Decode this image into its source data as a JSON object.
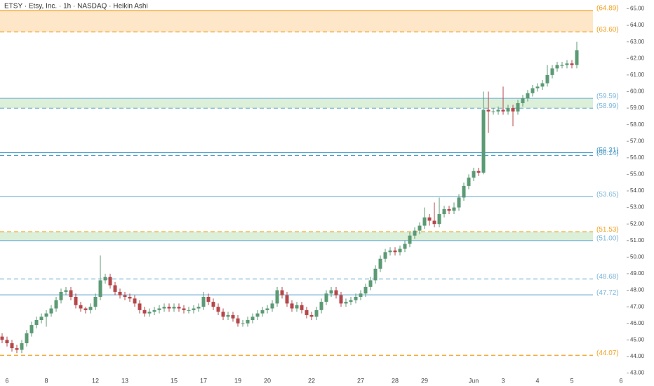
{
  "chart_data": {
    "type": "candlestick",
    "title": "ETSY · Etsy, Inc. · 1h · NASDAQ · Heikin Ashi",
    "categories": [
      null,
      "6",
      null,
      null,
      null,
      null,
      null,
      null,
      null,
      "8",
      null,
      null,
      null,
      null,
      null,
      null,
      null,
      null,
      null,
      "12",
      null,
      null,
      null,
      null,
      null,
      "13",
      null,
      null,
      null,
      null,
      null,
      null,
      null,
      null,
      null,
      "15",
      null,
      null,
      null,
      null,
      null,
      "17",
      null,
      null,
      null,
      null,
      null,
      null,
      "19",
      null,
      null,
      null,
      null,
      null,
      "20",
      null,
      null,
      null,
      null,
      null,
      null,
      null,
      null,
      "22",
      null,
      null,
      null,
      null,
      null,
      null,
      null,
      null,
      null,
      "27",
      null,
      null,
      null,
      null,
      null,
      null,
      "28",
      null,
      null,
      null,
      null,
      null,
      "29",
      null,
      null,
      null,
      null,
      null,
      null,
      null,
      null,
      null,
      "Jun",
      null,
      null,
      null,
      null,
      null,
      "3",
      null,
      null,
      null,
      null,
      null,
      null,
      "4",
      null,
      null,
      null,
      null,
      null,
      null,
      "5",
      null,
      null,
      null,
      null,
      null,
      null,
      null,
      null,
      null,
      "6",
      null
    ],
    "open": [
      45.2,
      45.0,
      44.8,
      44.5,
      44.4,
      44.8,
      45.4,
      45.9,
      46.2,
      46.4,
      46.6,
      46.9,
      47.4,
      47.9,
      48.0,
      47.6,
      47.1,
      46.9,
      46.8,
      47.0,
      47.6,
      48.6,
      48.8,
      48.3,
      47.9,
      47.7,
      47.6,
      47.5,
      47.2,
      46.8,
      46.6,
      46.7,
      46.8,
      46.9,
      47.0,
      46.9,
      47.0,
      46.9,
      46.8,
      46.8,
      46.9,
      47.0,
      47.6,
      47.3,
      47.0,
      46.7,
      46.4,
      46.5,
      46.3,
      46.0,
      46.0,
      46.2,
      46.4,
      46.6,
      46.8,
      46.9,
      47.2,
      48.0,
      47.7,
      47.2,
      46.9,
      47.1,
      46.8,
      46.5,
      46.4,
      46.8,
      47.3,
      47.8,
      48.0,
      47.7,
      47.2,
      47.3,
      47.4,
      47.6,
      47.8,
      48.2,
      48.6,
      49.3,
      49.9,
      50.3,
      50.4,
      50.3,
      50.5,
      50.8,
      51.3,
      51.6,
      51.9,
      52.4,
      52.2,
      52.0,
      52.6,
      52.9,
      52.8,
      53.0,
      53.6,
      54.3,
      54.8,
      55.2,
      55.1,
      58.9,
      58.8,
      58.8,
      58.9,
      58.8,
      59.0,
      58.8,
      59.3,
      59.6,
      59.9,
      60.2,
      60.3,
      60.5,
      61.0,
      61.4,
      61.6,
      61.6,
      61.7,
      61.6,
      null,
      null,
      null,
      null,
      null,
      null,
      null,
      null,
      null,
      null
    ],
    "high": [
      45.4,
      45.2,
      45.0,
      44.7,
      45.0,
      45.6,
      46.1,
      46.4,
      46.6,
      46.8,
      47.1,
      47.6,
      48.1,
      48.2,
      48.2,
      47.8,
      47.3,
      47.0,
      47.2,
      47.8,
      50.1,
      49.0,
      49.0,
      48.5,
      48.1,
      47.9,
      47.8,
      47.7,
      47.4,
      47.0,
      46.9,
      47.0,
      47.1,
      47.2,
      47.2,
      47.2,
      47.2,
      47.1,
      47.0,
      47.1,
      47.2,
      47.9,
      47.8,
      47.5,
      47.2,
      46.9,
      46.7,
      46.7,
      46.5,
      46.2,
      46.4,
      46.6,
      46.8,
      47.0,
      47.1,
      47.4,
      48.2,
      48.2,
      47.9,
      47.4,
      47.3,
      47.3,
      47.0,
      46.7,
      47.0,
      47.5,
      48.0,
      48.2,
      48.2,
      47.9,
      47.5,
      47.6,
      47.8,
      48.0,
      48.4,
      48.8,
      49.5,
      50.1,
      50.5,
      50.6,
      50.6,
      50.7,
      51.0,
      51.5,
      51.8,
      52.1,
      53.0,
      52.6,
      53.3,
      53.6,
      53.1,
      53.1,
      53.3,
      53.8,
      54.5,
      55.0,
      55.4,
      55.4,
      60.0,
      60.0,
      59.0,
      59.1,
      60.3,
      59.2,
      59.2,
      59.5,
      59.8,
      60.1,
      60.4,
      60.5,
      60.7,
      61.6,
      61.6,
      61.8,
      61.8,
      61.9,
      61.9,
      63.0,
      null,
      null,
      null,
      null,
      null,
      null,
      null,
      null,
      null,
      null
    ],
    "low": [
      44.8,
      44.6,
      44.3,
      44.2,
      44.2,
      44.6,
      45.2,
      45.7,
      46.0,
      45.8,
      46.4,
      46.7,
      47.2,
      47.7,
      47.4,
      46.9,
      46.7,
      46.6,
      46.6,
      46.8,
      47.4,
      48.4,
      48.1,
      47.7,
      47.5,
      47.4,
      47.3,
      47.0,
      46.6,
      46.4,
      46.4,
      46.5,
      46.6,
      46.7,
      46.7,
      46.7,
      46.7,
      46.6,
      46.6,
      46.6,
      46.7,
      46.8,
      47.1,
      46.8,
      46.5,
      46.2,
      46.2,
      46.1,
      45.8,
      45.8,
      45.8,
      46.0,
      46.2,
      46.4,
      46.6,
      46.7,
      47.0,
      47.5,
      47.0,
      46.7,
      46.7,
      46.6,
      46.3,
      46.2,
      46.2,
      46.6,
      47.1,
      47.6,
      47.5,
      47.0,
      47.0,
      47.1,
      47.2,
      47.4,
      47.6,
      48.0,
      48.4,
      49.1,
      49.7,
      50.1,
      50.1,
      50.1,
      50.3,
      50.6,
      51.1,
      51.4,
      51.7,
      51.9,
      51.8,
      51.8,
      52.4,
      52.6,
      52.6,
      52.8,
      53.4,
      54.1,
      54.6,
      54.9,
      55.0,
      57.5,
      58.6,
      58.6,
      58.6,
      58.6,
      57.9,
      58.6,
      59.1,
      59.4,
      59.7,
      60.0,
      60.1,
      60.3,
      60.8,
      61.2,
      61.4,
      61.4,
      61.4,
      61.4,
      null,
      null,
      null,
      null,
      null,
      null,
      null,
      null,
      null,
      null
    ],
    "close": [
      45.0,
      44.8,
      44.5,
      44.4,
      44.8,
      45.4,
      45.9,
      46.2,
      46.4,
      46.6,
      46.9,
      47.4,
      47.9,
      48.0,
      47.6,
      47.1,
      46.9,
      46.8,
      47.0,
      47.6,
      48.6,
      48.8,
      48.3,
      47.9,
      47.7,
      47.6,
      47.5,
      47.2,
      46.8,
      46.6,
      46.7,
      46.8,
      46.9,
      47.0,
      46.9,
      47.0,
      46.9,
      46.8,
      46.8,
      46.9,
      47.0,
      47.6,
      47.3,
      47.0,
      46.7,
      46.4,
      46.5,
      46.3,
      46.0,
      46.0,
      46.2,
      46.4,
      46.6,
      46.8,
      46.9,
      47.2,
      48.0,
      47.7,
      47.2,
      46.9,
      47.1,
      46.8,
      46.5,
      46.4,
      46.8,
      47.3,
      47.8,
      48.0,
      47.7,
      47.2,
      47.3,
      47.4,
      47.6,
      47.8,
      48.2,
      48.6,
      49.3,
      49.9,
      50.3,
      50.4,
      50.3,
      50.5,
      50.8,
      51.3,
      51.6,
      51.9,
      52.4,
      52.2,
      52.0,
      52.6,
      52.9,
      52.8,
      53.0,
      53.6,
      54.3,
      54.8,
      55.2,
      55.1,
      58.9,
      58.8,
      58.8,
      58.9,
      58.8,
      59.0,
      58.8,
      59.3,
      59.6,
      59.9,
      60.2,
      60.3,
      60.5,
      61.0,
      61.4,
      61.6,
      61.6,
      61.7,
      61.6,
      62.5,
      null,
      null,
      null,
      null,
      null,
      null,
      null,
      null,
      null,
      null
    ],
    "up_color": "#5b9a74",
    "down_color": "#b5464a",
    "ylim": [
      42.64,
      65.53
    ],
    "yticks": [
      {
        "value": 43,
        "label": "43.00"
      },
      {
        "value": 44,
        "label": "44.00"
      },
      {
        "value": 45,
        "label": "45.00"
      },
      {
        "value": 46,
        "label": "46.00"
      },
      {
        "value": 47,
        "label": "47.00"
      },
      {
        "value": 48,
        "label": "48.00"
      },
      {
        "value": 49,
        "label": "49.00"
      },
      {
        "value": 50,
        "label": "50.00"
      },
      {
        "value": 51,
        "label": "51.00"
      },
      {
        "value": 52,
        "label": "52.00"
      },
      {
        "value": 53,
        "label": "53.00"
      },
      {
        "value": 54,
        "label": "54.00"
      },
      {
        "value": 55,
        "label": "55.00"
      },
      {
        "value": 56,
        "label": "56.00"
      },
      {
        "value": 57,
        "label": "57.00"
      },
      {
        "value": 58,
        "label": "58.00"
      },
      {
        "value": 59,
        "label": "59.00"
      },
      {
        "value": 60,
        "label": "60.00"
      },
      {
        "value": 61,
        "label": "61.00"
      },
      {
        "value": 62,
        "label": "62.00"
      },
      {
        "value": 63,
        "label": "63.00"
      },
      {
        "value": 64,
        "label": "64.00"
      },
      {
        "value": 65,
        "label": "65.00"
      }
    ],
    "zones": [
      {
        "from": 63.6,
        "to": 64.89,
        "color": "#fde7c8"
      },
      {
        "from": 58.99,
        "to": 59.59,
        "color": "#dcefd9"
      },
      {
        "from": 51.0,
        "to": 51.53,
        "color": "#dcefd9"
      }
    ],
    "levels": [
      {
        "value": 64.89,
        "label": "(64.89)",
        "color": "#f0a020",
        "style": "solid"
      },
      {
        "value": 63.6,
        "label": "(63.60)",
        "color": "#f0a020",
        "style": "dashed"
      },
      {
        "value": 59.59,
        "label": "(59.59)",
        "color": "#7db6d8",
        "style": "solid"
      },
      {
        "value": 58.99,
        "label": "(58.99)",
        "color": "#7db6d8",
        "style": "dashed"
      },
      {
        "value": 56.31,
        "label": "(56.31)",
        "color": "#4f9cc8",
        "style": "solid"
      },
      {
        "value": 56.14,
        "label": "(56.14)",
        "color": "#4f9cc8",
        "style": "dashed"
      },
      {
        "value": 53.65,
        "label": "(53.65)",
        "color": "#7db6d8",
        "style": "solid"
      },
      {
        "value": 51.53,
        "label": "(51.53)",
        "color": "#f0a020",
        "style": "dashed"
      },
      {
        "value": 51.0,
        "label": "(51.00)",
        "color": "#7db6d8",
        "style": "solid"
      },
      {
        "value": 48.68,
        "label": "(48.68)",
        "color": "#7db6d8",
        "style": "dashed"
      },
      {
        "value": 47.72,
        "label": "(47.72)",
        "color": "#7db6d8",
        "style": "solid"
      },
      {
        "value": 44.07,
        "label": "(44.07)",
        "color": "#f0a020",
        "style": "dashed"
      }
    ]
  }
}
